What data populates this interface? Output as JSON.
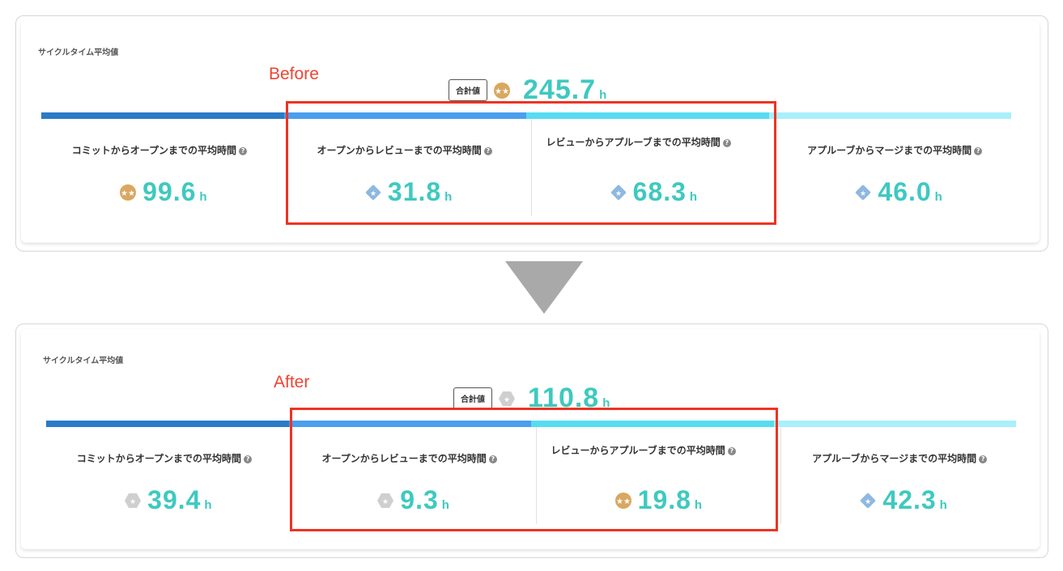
{
  "colors": {
    "bar": [
      "#2a7bc8",
      "#4a9fee",
      "#57dcf0",
      "#a8f0fb"
    ],
    "accent": "#3ec9c0",
    "highlight": "#ee3322"
  },
  "panels": [
    {
      "title": "サイクルタイム平均値",
      "tag": "Before",
      "total": {
        "label": "合計値",
        "value": "245.7",
        "unit": "h",
        "badge": "gold-medal"
      },
      "segments": [
        {
          "label": "コミットからオープンまでの平均時間",
          "value": "99.6",
          "unit": "h",
          "badge": "gold-medal"
        },
        {
          "label": "オープンからレビューまでの平均時間",
          "value": "31.8",
          "unit": "h",
          "badge": "blue-diamond"
        },
        {
          "label": "レビューからアプルーブまでの平均時間",
          "value": "68.3",
          "unit": "h",
          "badge": "blue-diamond"
        },
        {
          "label": "アプルーブからマージまでの平均時間",
          "value": "46.0",
          "unit": "h",
          "badge": "blue-diamond"
        }
      ]
    },
    {
      "title": "サイクルタイム平均値",
      "tag": "After",
      "total": {
        "label": "合計値",
        "value": "110.8",
        "unit": "h",
        "badge": "gray-hexagon"
      },
      "segments": [
        {
          "label": "コミットからオープンまでの平均時間",
          "value": "39.4",
          "unit": "h",
          "badge": "gray-hexagon"
        },
        {
          "label": "オープンからレビューまでの平均時間",
          "value": "9.3",
          "unit": "h",
          "badge": "gray-hexagon"
        },
        {
          "label": "レビューからアプルーブまでの平均時間",
          "value": "19.8",
          "unit": "h",
          "badge": "gold-medal"
        },
        {
          "label": "アプルーブからマージまでの平均時間",
          "value": "42.3",
          "unit": "h",
          "badge": "blue-diamond"
        }
      ]
    }
  ]
}
